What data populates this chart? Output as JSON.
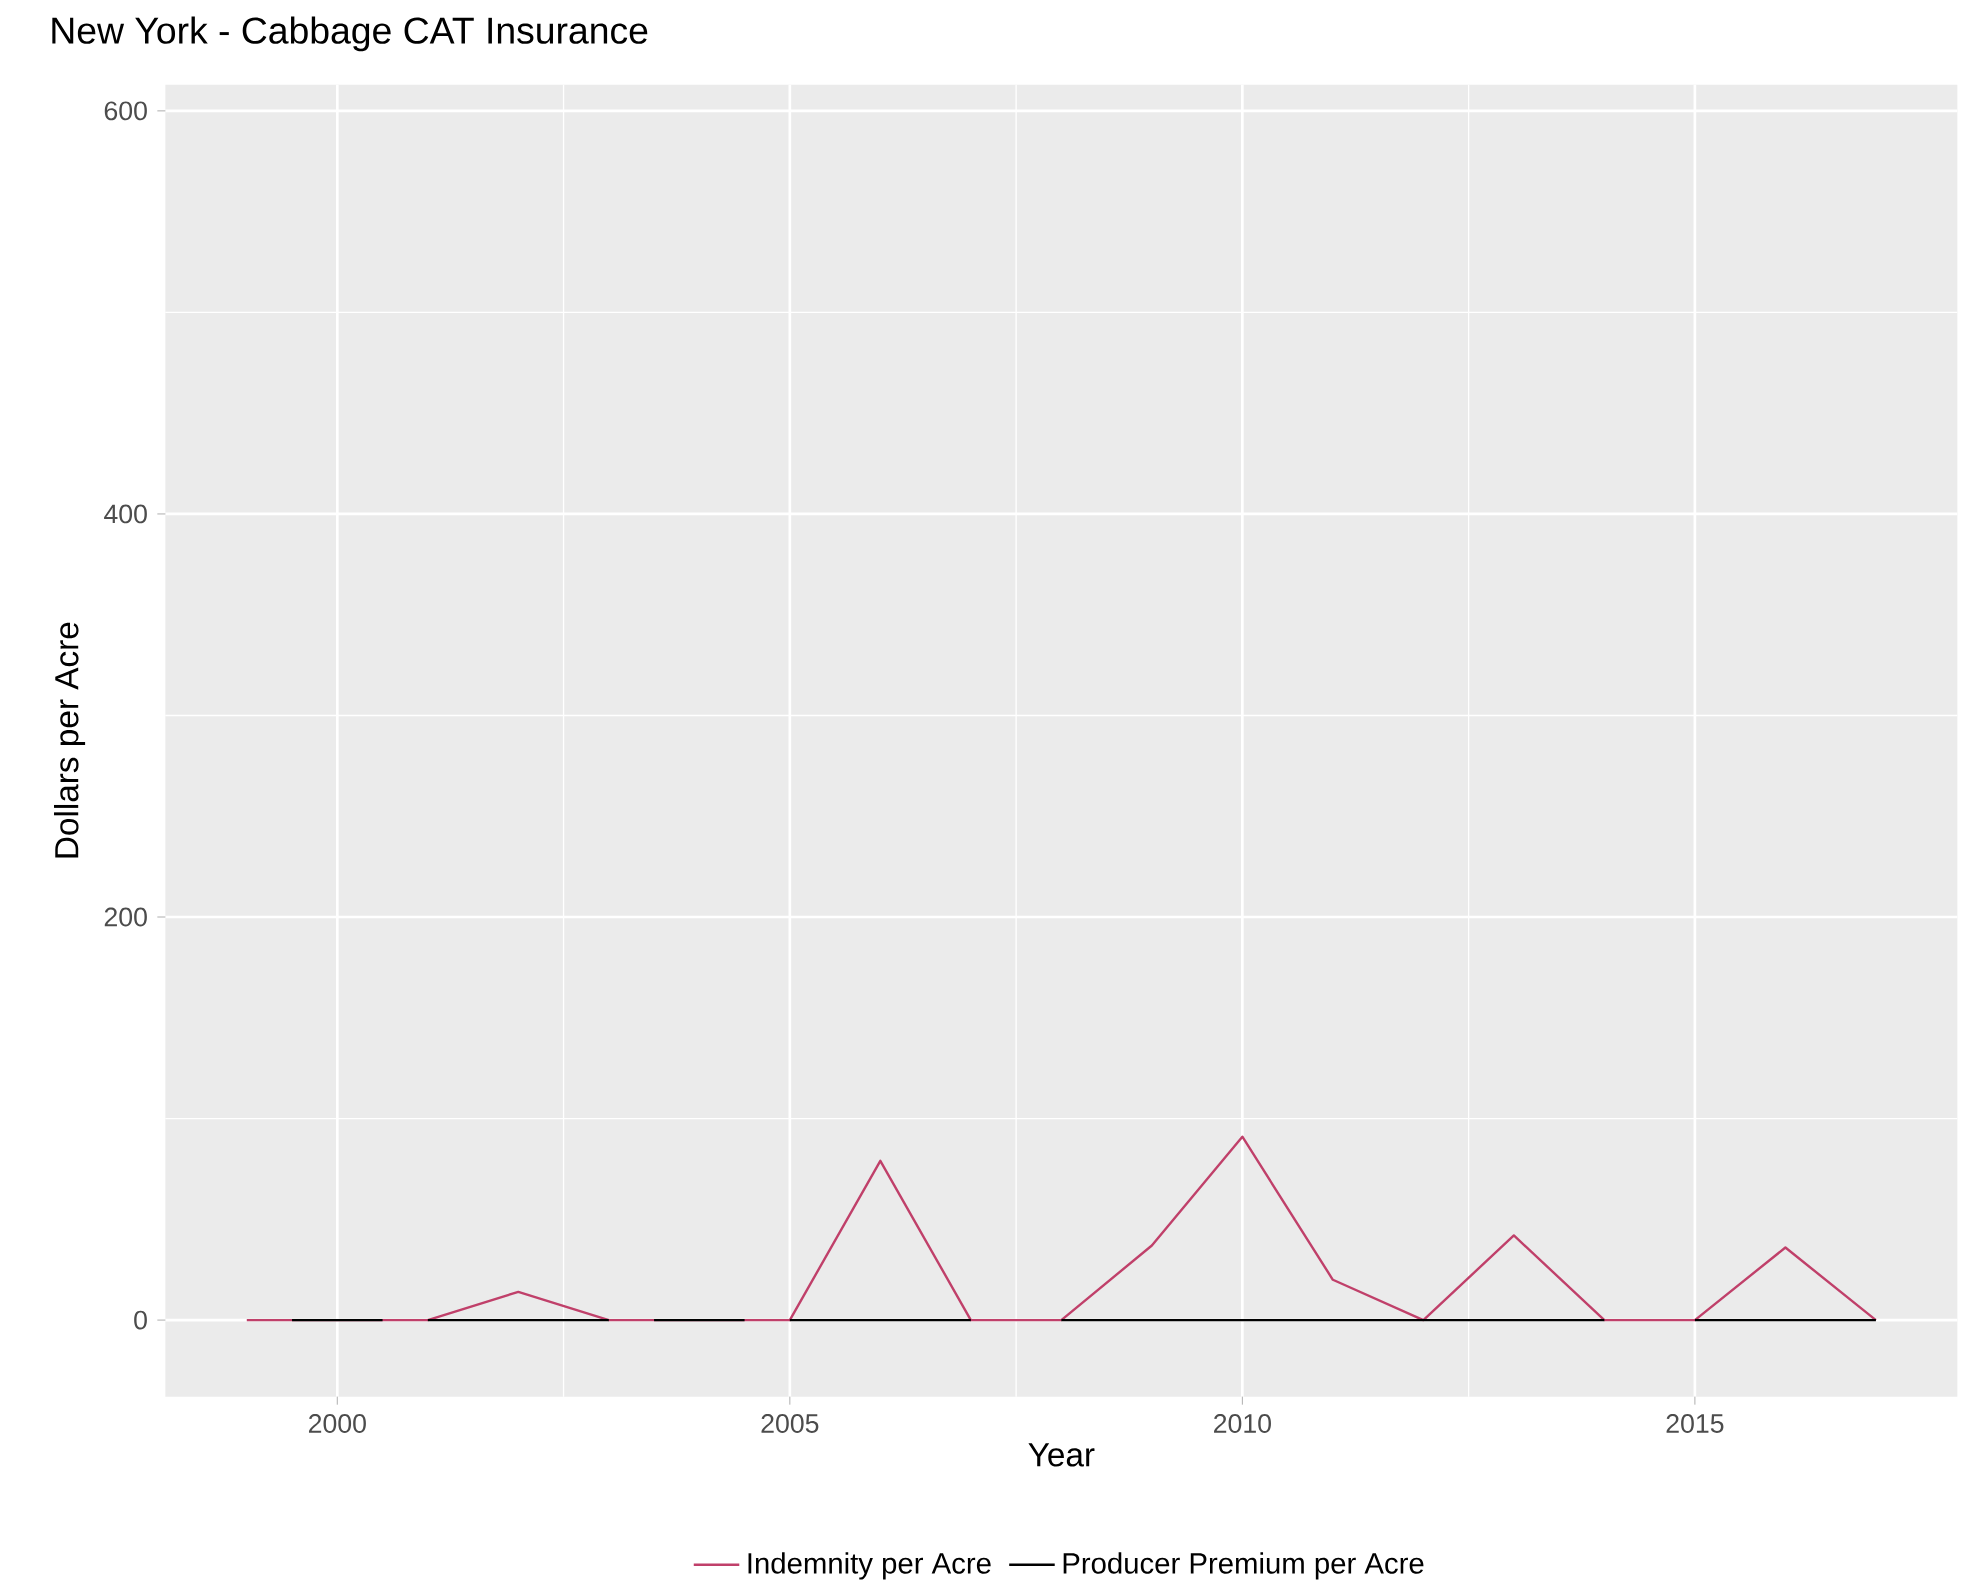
{
  "chart_data": {
    "type": "line",
    "title": "New York - Cabbage CAT Insurance",
    "xlabel": "Year",
    "ylabel": "Dollars per Acre",
    "xlim": [
      1998.1,
      2017.9
    ],
    "ylim": [
      -38,
      613
    ],
    "xticks": [
      2000,
      2005,
      2010,
      2015
    ],
    "yticks": [
      0,
      200,
      400,
      600
    ],
    "grid": true,
    "legend": "bottom",
    "line_style": "solid",
    "series": [
      {
        "name": "Indemnity per Acre",
        "color": "#c0406a",
        "x": [
          1999,
          2000,
          2001,
          2002,
          2003,
          2004,
          2005,
          2006,
          2007,
          2008,
          2009,
          2010,
          2011,
          2012,
          2013,
          2014,
          2015,
          2016,
          2017
        ],
        "values": [
          0,
          0,
          0,
          14,
          0,
          0,
          0,
          79,
          0,
          0,
          37,
          91,
          20,
          0,
          42,
          0,
          0,
          36,
          0
        ]
      },
      {
        "name": "Producer Premium per Acre",
        "color": "#000000",
        "x": [
          1999.5,
          2000.5,
          2000.75,
          2001,
          2002,
          2003,
          2003.25,
          2003.5,
          2004.5,
          2004.75,
          2005,
          2006,
          2007,
          2007.5,
          2008,
          2009,
          2010,
          2011,
          2012,
          2013,
          2014,
          2014.5,
          2015,
          2016,
          2017
        ],
        "values": [
          0,
          0,
          null,
          0,
          0,
          0,
          null,
          0,
          0,
          null,
          0,
          0,
          0,
          null,
          0,
          0,
          0,
          0,
          0,
          0,
          0,
          null,
          0,
          0,
          0
        ]
      }
    ]
  }
}
